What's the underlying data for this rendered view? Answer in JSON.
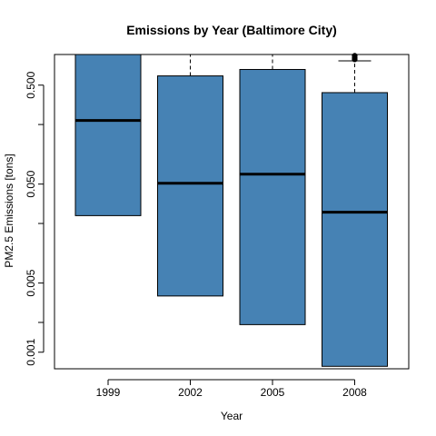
{
  "chart_data": {
    "type": "boxplot",
    "title": "Emissions by Year (Baltimore City)",
    "xlabel": "Year",
    "ylabel": "PM2.5 Emissions [tons]",
    "y_scale": "log10",
    "ylim": [
      0.00068,
      1.02
    ],
    "y_ticks": [
      {
        "value": 0.001,
        "label": "0.001"
      },
      {
        "value": 0.002,
        "label": ""
      },
      {
        "value": 0.005,
        "label": "0.005"
      },
      {
        "value": 0.02,
        "label": ""
      },
      {
        "value": 0.05,
        "label": "0.050"
      },
      {
        "value": 0.2,
        "label": ""
      },
      {
        "value": 0.5,
        "label": "0.500"
      }
    ],
    "categories": [
      "1999",
      "2002",
      "2005",
      "2008"
    ],
    "box_color": "#4682b4",
    "boxes": [
      {
        "q1": 0.024,
        "median": 0.22,
        "q3": 1.02,
        "whisker_low": null,
        "whisker_high": null,
        "outliers": []
      },
      {
        "q1": 0.0037,
        "median": 0.051,
        "q3": 0.62,
        "whisker_low": null,
        "whisker_high": 1.02,
        "outliers": []
      },
      {
        "q1": 0.0019,
        "median": 0.063,
        "q3": 0.72,
        "whisker_low": null,
        "whisker_high": 1.02,
        "outliers": []
      },
      {
        "q1": 0.00072,
        "median": 0.026,
        "q3": 0.42,
        "whisker_low": null,
        "whisker_high": 0.88,
        "outliers": [
          0.91,
          0.95,
          0.99
        ]
      }
    ],
    "grid": false,
    "legend": "none"
  }
}
